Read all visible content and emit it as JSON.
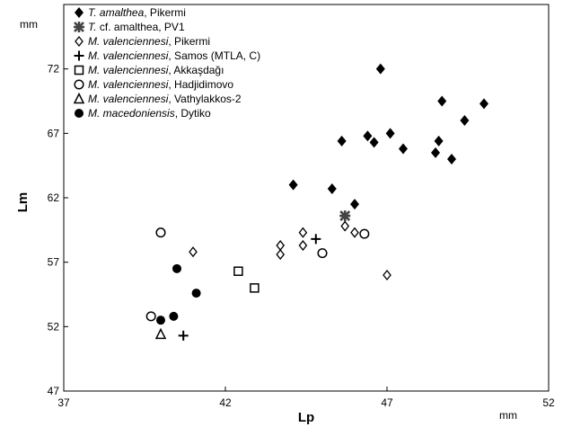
{
  "chart_data": {
    "type": "scatter",
    "xlabel": "Lp",
    "ylabel": "Lm",
    "x_unit": "mm",
    "y_unit": "mm",
    "xlim": [
      37,
      52
    ],
    "ylim": [
      47,
      77
    ],
    "xticks": [
      37,
      42,
      47,
      52
    ],
    "yticks": [
      47,
      52,
      57,
      62,
      67,
      72
    ],
    "grid": false,
    "legend_position": "top-left",
    "series": [
      {
        "name": "T. amalthea, Pikermi",
        "name_italic": "T. amalthea",
        "name_rest": ", Pikermi",
        "marker": "filled-diamond",
        "points": [
          [
            46.8,
            72.0
          ],
          [
            48.7,
            69.5
          ],
          [
            50.0,
            69.3
          ],
          [
            49.4,
            68.0
          ],
          [
            46.4,
            66.8
          ],
          [
            47.1,
            67.0
          ],
          [
            45.6,
            66.4
          ],
          [
            46.6,
            66.3
          ],
          [
            48.6,
            66.4
          ],
          [
            47.5,
            65.8
          ],
          [
            48.5,
            65.5
          ],
          [
            49.0,
            65.0
          ],
          [
            44.1,
            63.0
          ],
          [
            45.3,
            62.7
          ],
          [
            46.0,
            61.5
          ]
        ]
      },
      {
        "name": "T. cf. amalthea, PV1",
        "name_italic": "T.",
        "name_rest": " cf. amalthea, PV1",
        "marker": "star",
        "points": [
          [
            45.7,
            60.6
          ]
        ]
      },
      {
        "name": "M. valenciennesi, Pikermi",
        "name_italic": "M. valenciennesi",
        "name_rest": ", Pikermi",
        "marker": "open-diamond",
        "points": [
          [
            41.0,
            57.8
          ],
          [
            43.7,
            58.3
          ],
          [
            43.7,
            57.6
          ],
          [
            44.4,
            59.3
          ],
          [
            44.4,
            58.3
          ],
          [
            45.7,
            59.8
          ],
          [
            46.0,
            59.3
          ],
          [
            47.0,
            56.0
          ]
        ]
      },
      {
        "name": "M. valenciennesi, Samos (MTLA, C)",
        "name_italic": "M. valenciennesi",
        "name_rest": ", Samos (MTLA, C)",
        "marker": "plus",
        "points": [
          [
            44.8,
            58.8
          ],
          [
            40.7,
            51.3
          ]
        ]
      },
      {
        "name": "M. valenciennesi, Akkaşdağı",
        "name_italic": "M. valenciennesi",
        "name_rest": ", Akkaşdağı",
        "marker": "open-square",
        "points": [
          [
            42.4,
            56.3
          ],
          [
            42.9,
            55.0
          ]
        ]
      },
      {
        "name": "M. valenciennesi, Hadjidimovo",
        "name_italic": "M. valenciennesi",
        "name_rest": ", Hadjidimovo",
        "marker": "open-circle",
        "points": [
          [
            40.0,
            59.3
          ],
          [
            46.3,
            59.2
          ],
          [
            45.0,
            57.7
          ],
          [
            39.7,
            52.8
          ]
        ]
      },
      {
        "name": "M. valenciennesi, Vathylakkos-2",
        "name_italic": "M. valenciennesi",
        "name_rest": ", Vathylakkos-2",
        "marker": "open-triangle",
        "points": [
          [
            40.0,
            51.4
          ]
        ]
      },
      {
        "name": "M. macedoniensis, Dytiko",
        "name_italic": "M. macedoniensis",
        "name_rest": ", Dytiko",
        "marker": "filled-circle",
        "points": [
          [
            40.5,
            56.5
          ],
          [
            41.1,
            54.6
          ],
          [
            40.4,
            52.8
          ],
          [
            40.0,
            52.5
          ]
        ]
      }
    ]
  }
}
